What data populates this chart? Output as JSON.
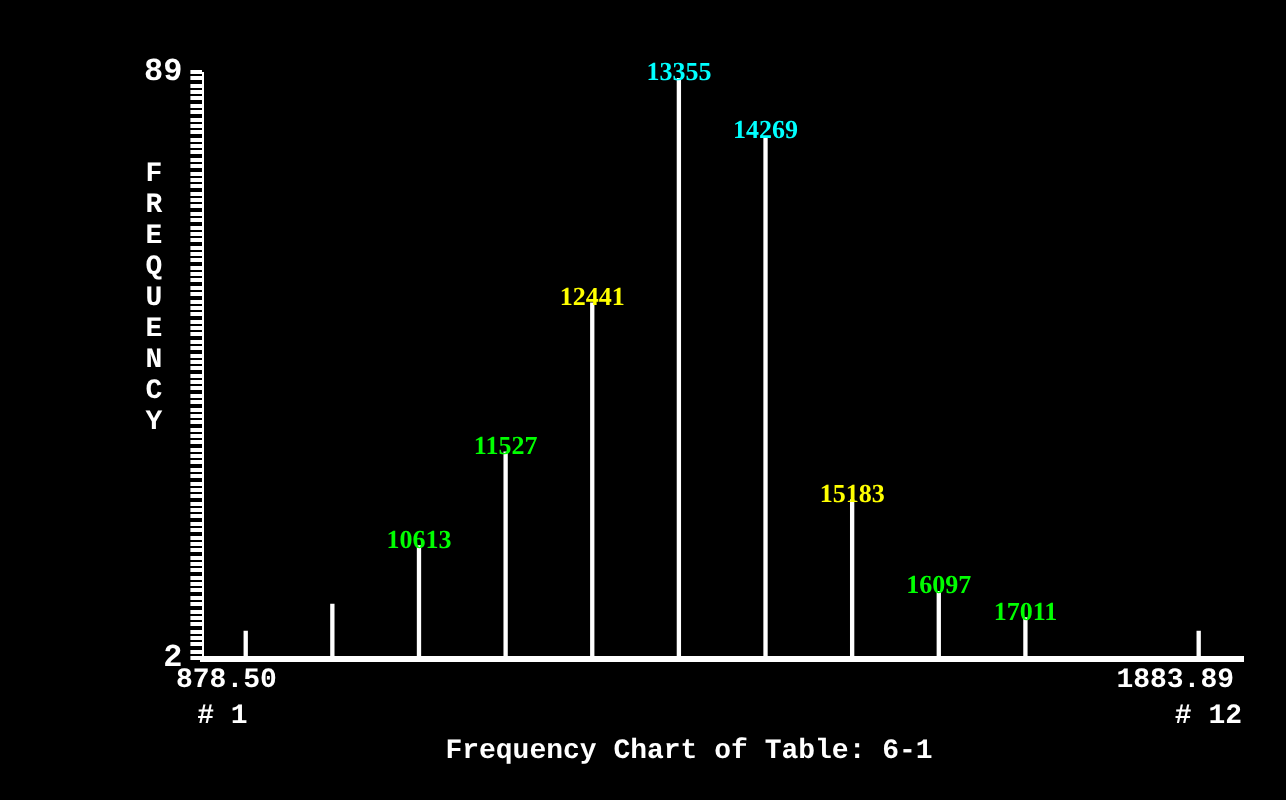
{
  "chart_data": {
    "type": "bar",
    "title": "Frequency Chart of Table: 6-1",
    "ylabel": "FREQUENCY",
    "categories": [
      null,
      null,
      "10613",
      "11527",
      "12441",
      "13355",
      "14269",
      "15183",
      "16097",
      "17011",
      null,
      null
    ],
    "values": [
      6,
      10,
      18.7,
      32.6,
      54.7,
      88,
      79.4,
      25.5,
      11.9,
      8,
      null,
      6
    ],
    "color": "#ffffff",
    "ylim": [
      2,
      89
    ],
    "yticks": [
      2,
      {
        "value": 3,
        "label": null
      },
      {
        "value": 4,
        "label": null
      },
      {
        "value": 5,
        "label": null
      },
      {
        "value": 6,
        "label": null
      },
      {
        "value": 7,
        "label": null
      },
      {
        "value": 8,
        "label": null
      },
      {
        "value": 9,
        "label": null
      },
      {
        "value": 10,
        "label": null
      },
      {
        "value": 11,
        "label": null
      },
      {
        "value": 12,
        "label": null
      },
      {
        "value": 13,
        "label": null
      },
      {
        "value": 14,
        "label": null
      },
      {
        "value": 15,
        "label": null
      },
      {
        "value": 16,
        "label": null
      },
      {
        "value": 17,
        "label": null
      },
      {
        "value": 18,
        "label": null
      },
      {
        "value": 19,
        "label": null
      },
      {
        "value": 20,
        "label": null
      },
      {
        "value": 21,
        "label": null
      },
      {
        "value": 22,
        "label": null
      },
      {
        "value": 23,
        "label": null
      },
      {
        "value": 24,
        "label": null
      },
      {
        "value": 25,
        "label": null
      },
      {
        "value": 26,
        "label": null
      },
      {
        "value": 27,
        "label": null
      },
      {
        "value": 28,
        "label": null
      },
      {
        "value": 29,
        "label": null
      },
      {
        "value": 30,
        "label": null
      },
      {
        "value": 31,
        "label": null
      },
      {
        "value": 32,
        "label": null
      },
      {
        "value": 33,
        "label": null
      },
      {
        "value": 34,
        "label": null
      },
      {
        "value": 35,
        "label": null
      },
      {
        "value": 36,
        "label": null
      },
      {
        "value": 37,
        "label": null
      },
      {
        "value": 38,
        "label": null
      },
      {
        "value": 39,
        "label": null
      },
      {
        "value": 40,
        "label": null
      },
      {
        "value": 41,
        "label": null
      },
      {
        "value": 42,
        "label": null
      },
      {
        "value": 43,
        "label": null
      },
      {
        "value": 44,
        "label": null
      },
      {
        "value": 45,
        "label": null
      },
      {
        "value": 46,
        "label": null
      },
      {
        "value": 47,
        "label": null
      },
      {
        "value": 48,
        "label": null
      },
      {
        "value": 49,
        "label": null
      },
      {
        "value": 50,
        "label": null
      },
      {
        "value": 51,
        "label": null
      },
      {
        "value": 52,
        "label": null
      },
      {
        "value": 53,
        "label": null
      },
      {
        "value": 54,
        "label": null
      },
      {
        "value": 55,
        "label": null
      },
      {
        "value": 56,
        "label": null
      },
      {
        "value": 57,
        "label": null
      },
      {
        "value": 58,
        "label": null
      },
      {
        "value": 59,
        "label": null
      },
      {
        "value": 60,
        "label": null
      },
      {
        "value": 61,
        "label": null
      },
      {
        "value": 62,
        "label": null
      },
      {
        "value": 63,
        "label": null
      },
      {
        "value": 64,
        "label": null
      },
      {
        "value": 65,
        "label": null
      },
      {
        "value": 66,
        "label": null
      },
      {
        "value": 67,
        "label": null
      },
      {
        "value": 68,
        "label": null
      },
      {
        "value": 69,
        "label": null
      },
      {
        "value": 70,
        "label": null
      },
      {
        "value": 71,
        "label": null
      },
      {
        "value": 72,
        "label": null
      },
      {
        "value": 73,
        "label": null
      },
      {
        "value": 74,
        "label": null
      },
      {
        "value": 75,
        "label": null
      },
      {
        "value": 76,
        "label": null
      },
      {
        "value": 77,
        "label": null
      },
      {
        "value": 78,
        "label": null
      },
      {
        "value": 79,
        "label": null
      },
      {
        "value": 80,
        "label": null
      },
      {
        "value": 81,
        "label": null
      },
      {
        "value": 82,
        "label": null
      },
      {
        "value": 83,
        "label": null
      },
      {
        "value": 84,
        "label": null
      },
      {
        "value": 85,
        "label": null
      },
      {
        "value": 86,
        "label": null
      },
      {
        "value": 87,
        "label": null
      },
      {
        "value": 88,
        "label": null
      },
      89
    ],
    "annotations": [
      "878.50",
      "# 1",
      "1883.89",
      "# 12"
    ]
  }
}
